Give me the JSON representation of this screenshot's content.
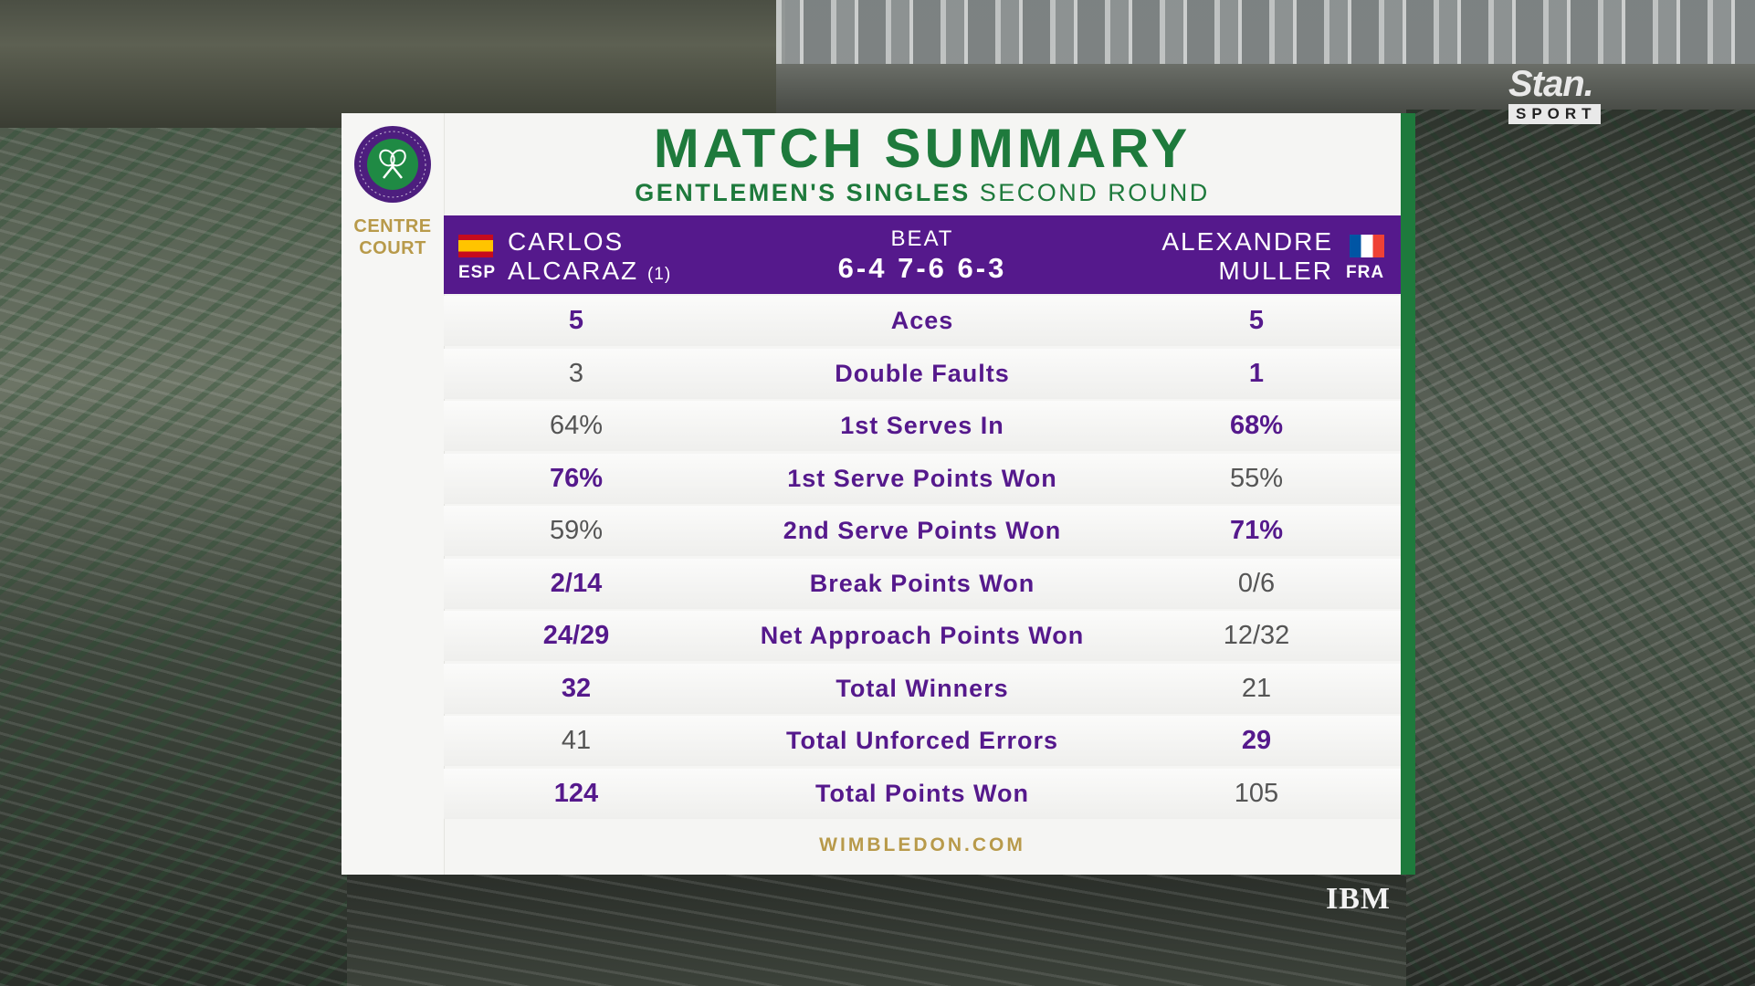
{
  "broadcast": {
    "channel_logo_word": "Stan.",
    "channel_logo_sub": "SPORT",
    "sponsor": "IBM"
  },
  "tournament": {
    "court_line1": "CENTRE",
    "court_line2": "COURT",
    "logo_icon": "crossed-rackets-icon"
  },
  "header": {
    "title": "MATCH SUMMARY",
    "event_bold": "GENTLEMEN'S SINGLES",
    "event_round": "SECOND ROUND"
  },
  "match": {
    "player1": {
      "first": "CARLOS",
      "last": "ALCARAZ",
      "seed": "(1)",
      "country": "ESP"
    },
    "player2": {
      "first": "ALEXANDRE",
      "last": "MULLER",
      "country": "FRA"
    },
    "result_word": "BEAT",
    "score": "6-4 7-6 6-3"
  },
  "stats": [
    {
      "label": "Aces",
      "left": "5",
      "right": "5",
      "left_bold": true,
      "right_bold": true
    },
    {
      "label": "Double Faults",
      "left": "3",
      "right": "1",
      "left_bold": false,
      "right_bold": true
    },
    {
      "label": "1st Serves In",
      "left": "64%",
      "right": "68%",
      "left_bold": false,
      "right_bold": true
    },
    {
      "label": "1st Serve Points Won",
      "left": "76%",
      "right": "55%",
      "left_bold": true,
      "right_bold": false
    },
    {
      "label": "2nd Serve Points Won",
      "left": "59%",
      "right": "71%",
      "left_bold": false,
      "right_bold": true
    },
    {
      "label": "Break Points Won",
      "left": "2/14",
      "right": "0/6",
      "left_bold": true,
      "right_bold": false
    },
    {
      "label": "Net Approach Points Won",
      "left": "24/29",
      "right": "12/32",
      "left_bold": true,
      "right_bold": false
    },
    {
      "label": "Total Winners",
      "left": "32",
      "right": "21",
      "left_bold": true,
      "right_bold": false
    },
    {
      "label": "Total Unforced Errors",
      "left": "41",
      "right": "29",
      "left_bold": false,
      "right_bold": true
    },
    {
      "label": "Total Points Won",
      "left": "124",
      "right": "105",
      "left_bold": true,
      "right_bold": false
    }
  ],
  "footer": {
    "website": "WIMBLEDON.COM"
  },
  "colors": {
    "purple": "#55198c",
    "green": "#1e7a3c",
    "gold": "#b89a4a"
  }
}
